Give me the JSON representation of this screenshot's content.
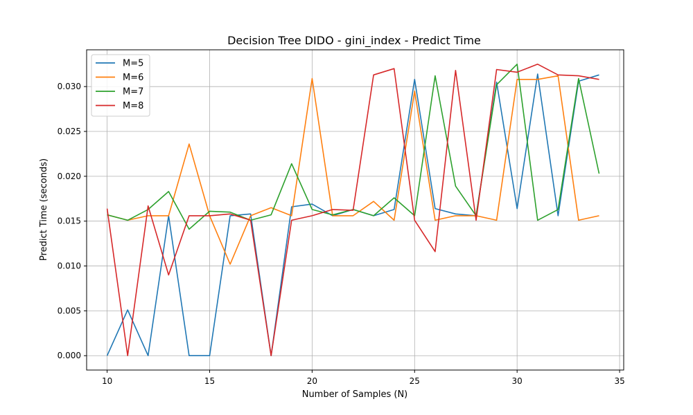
{
  "chart_data": {
    "type": "line",
    "title": "Decision Tree DIDO - gini_index - Predict Time",
    "xlabel": "Number of Samples (N)",
    "ylabel": "Predict Time (seconds)",
    "xlim": [
      9.0,
      35.2
    ],
    "ylim": [
      -0.0016,
      0.0341
    ],
    "xticks": [
      10,
      15,
      20,
      25,
      30,
      35
    ],
    "yticks": [
      0.0,
      0.005,
      0.01,
      0.015,
      0.02,
      0.025,
      0.03
    ],
    "xtick_labels": [
      "10",
      "15",
      "20",
      "25",
      "30",
      "35"
    ],
    "ytick_labels": [
      "0.000",
      "0.005",
      "0.010",
      "0.015",
      "0.020",
      "0.025",
      "0.030"
    ],
    "grid": true,
    "legend_position": "top-left",
    "x": [
      10,
      11,
      12,
      13,
      14,
      15,
      16,
      17,
      18,
      19,
      20,
      21,
      22,
      23,
      24,
      25,
      26,
      27,
      28,
      29,
      30,
      31,
      32,
      33,
      34
    ],
    "series": [
      {
        "name": "M=5",
        "color": "#1f77b4",
        "values": [
          0.0,
          0.0051,
          0.0,
          0.0156,
          0.0,
          0.0,
          0.0156,
          0.0158,
          0.0,
          0.0166,
          0.0169,
          0.0156,
          0.0163,
          0.0156,
          0.0163,
          0.0308,
          0.0164,
          0.0158,
          0.0156,
          0.0305,
          0.0164,
          0.0314,
          0.0156,
          0.0306,
          0.0313
        ]
      },
      {
        "name": "M=6",
        "color": "#ff7f0e",
        "values": [
          0.0157,
          0.0151,
          0.0156,
          0.0156,
          0.0236,
          0.0156,
          0.0102,
          0.0156,
          0.0165,
          0.0156,
          0.0309,
          0.0156,
          0.0156,
          0.0172,
          0.0151,
          0.0295,
          0.0151,
          0.0156,
          0.0156,
          0.0151,
          0.0308,
          0.0308,
          0.0312,
          0.0151,
          0.0156
        ]
      },
      {
        "name": "M=7",
        "color": "#2ca02c",
        "values": [
          0.0157,
          0.0151,
          0.0163,
          0.0183,
          0.0141,
          0.0161,
          0.016,
          0.0151,
          0.0157,
          0.0214,
          0.0163,
          0.0157,
          0.0163,
          0.0156,
          0.0176,
          0.0156,
          0.0312,
          0.0189,
          0.0156,
          0.0302,
          0.0325,
          0.0151,
          0.0163,
          0.0309,
          0.0203
        ]
      },
      {
        "name": "M=8",
        "color": "#d62728",
        "values": [
          0.0164,
          0.0,
          0.0167,
          0.009,
          0.0156,
          0.0156,
          0.0158,
          0.0151,
          0.0,
          0.0151,
          0.0156,
          0.0163,
          0.0162,
          0.0313,
          0.032,
          0.0151,
          0.0116,
          0.0318,
          0.0151,
          0.0319,
          0.0316,
          0.0325,
          0.0313,
          0.0312,
          0.0308
        ]
      }
    ]
  }
}
